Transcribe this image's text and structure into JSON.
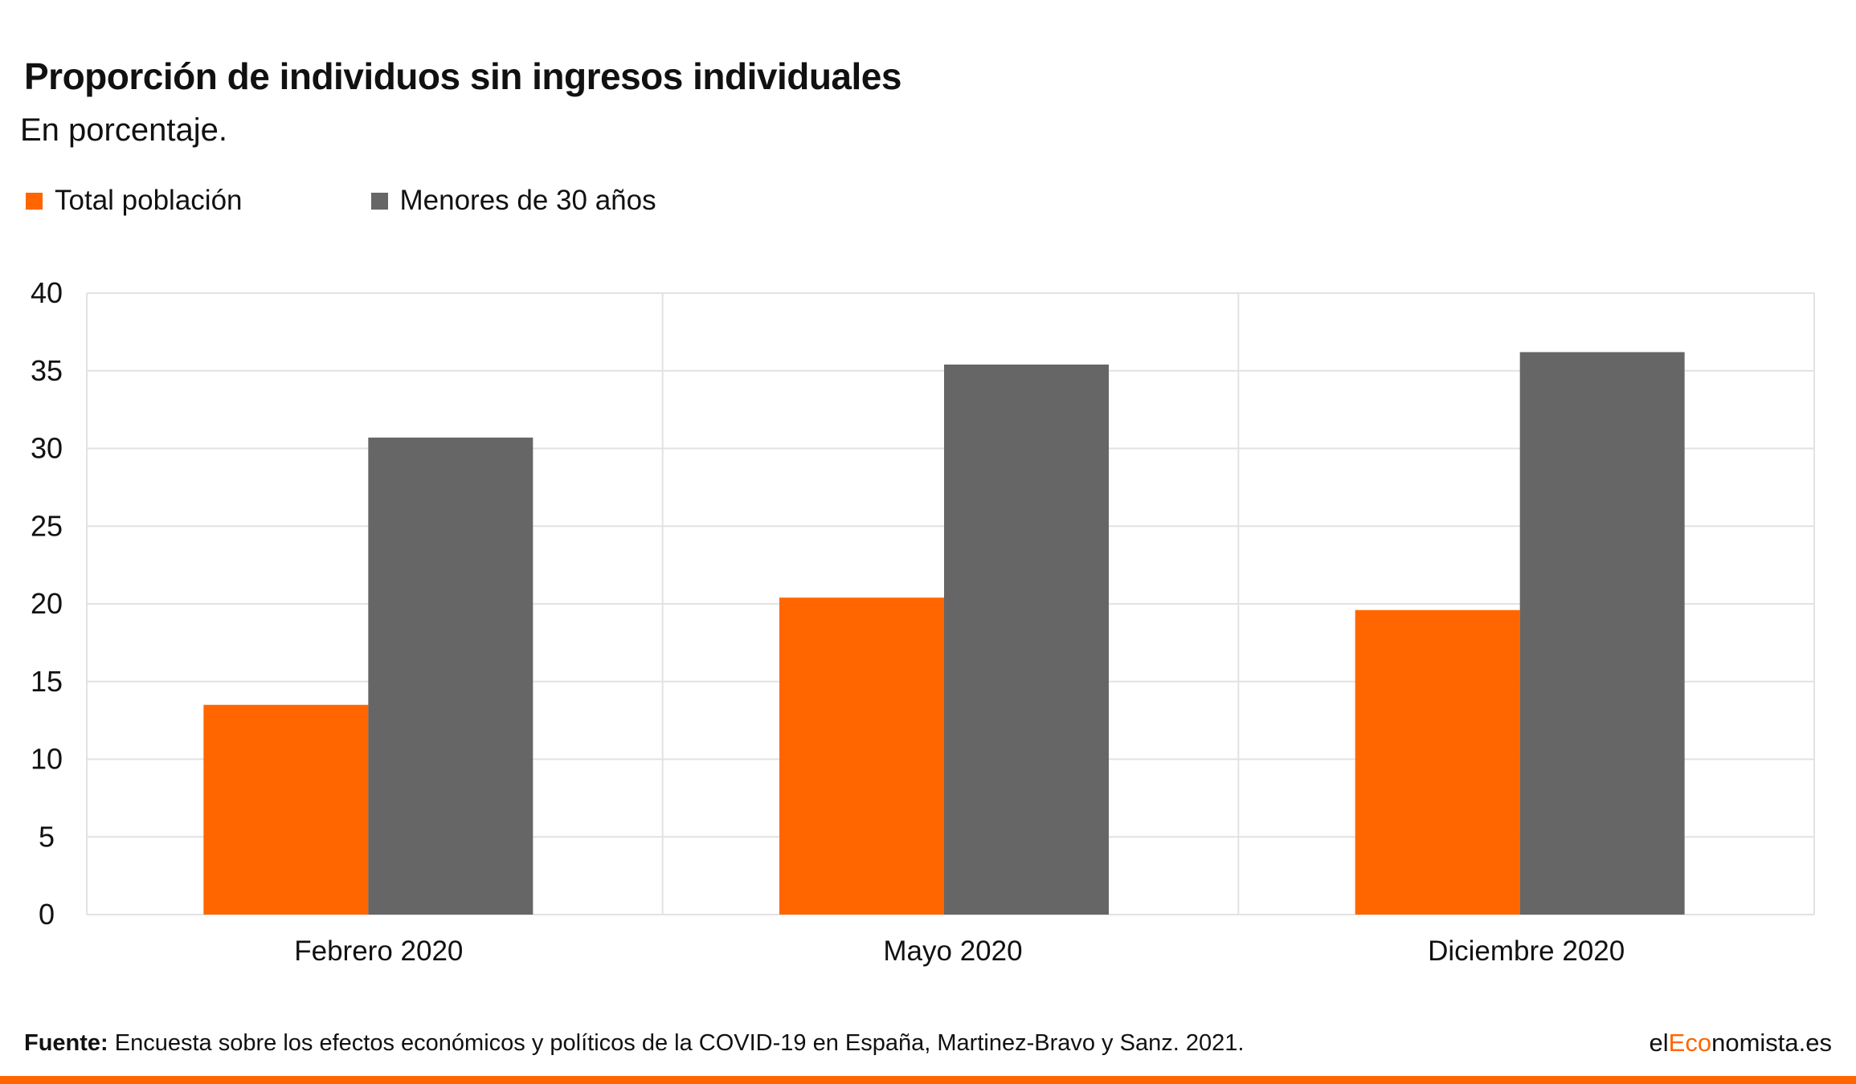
{
  "chart_data": {
    "type": "bar",
    "title": "Proporción de individuos sin ingresos individuales",
    "subtitle": "En porcentaje.",
    "categories": [
      "Febrero 2020",
      "Mayo 2020",
      "Diciembre 2020"
    ],
    "series": [
      {
        "name": "Total población",
        "values": [
          13.5,
          20.4,
          19.6
        ],
        "color": "#ff6600"
      },
      {
        "name": "Menores de 30 años",
        "values": [
          30.7,
          35.4,
          36.2
        ],
        "color": "#666666"
      }
    ],
    "ylim": [
      0,
      40
    ],
    "yticks": [
      0,
      5,
      10,
      15,
      20,
      25,
      30,
      35,
      40
    ],
    "grid": true,
    "legend_position": "top-left"
  },
  "footer": {
    "source_label": "Fuente:",
    "source_text": " Encuesta sobre los efectos económicos y políticos de la COVID-19 en España, Martinez-Bravo y Sanz. 2021."
  },
  "brand": {
    "prefix": "el",
    "accent": "Eco",
    "suffix": "nomista.es",
    "accent_color": "#ff6600"
  }
}
